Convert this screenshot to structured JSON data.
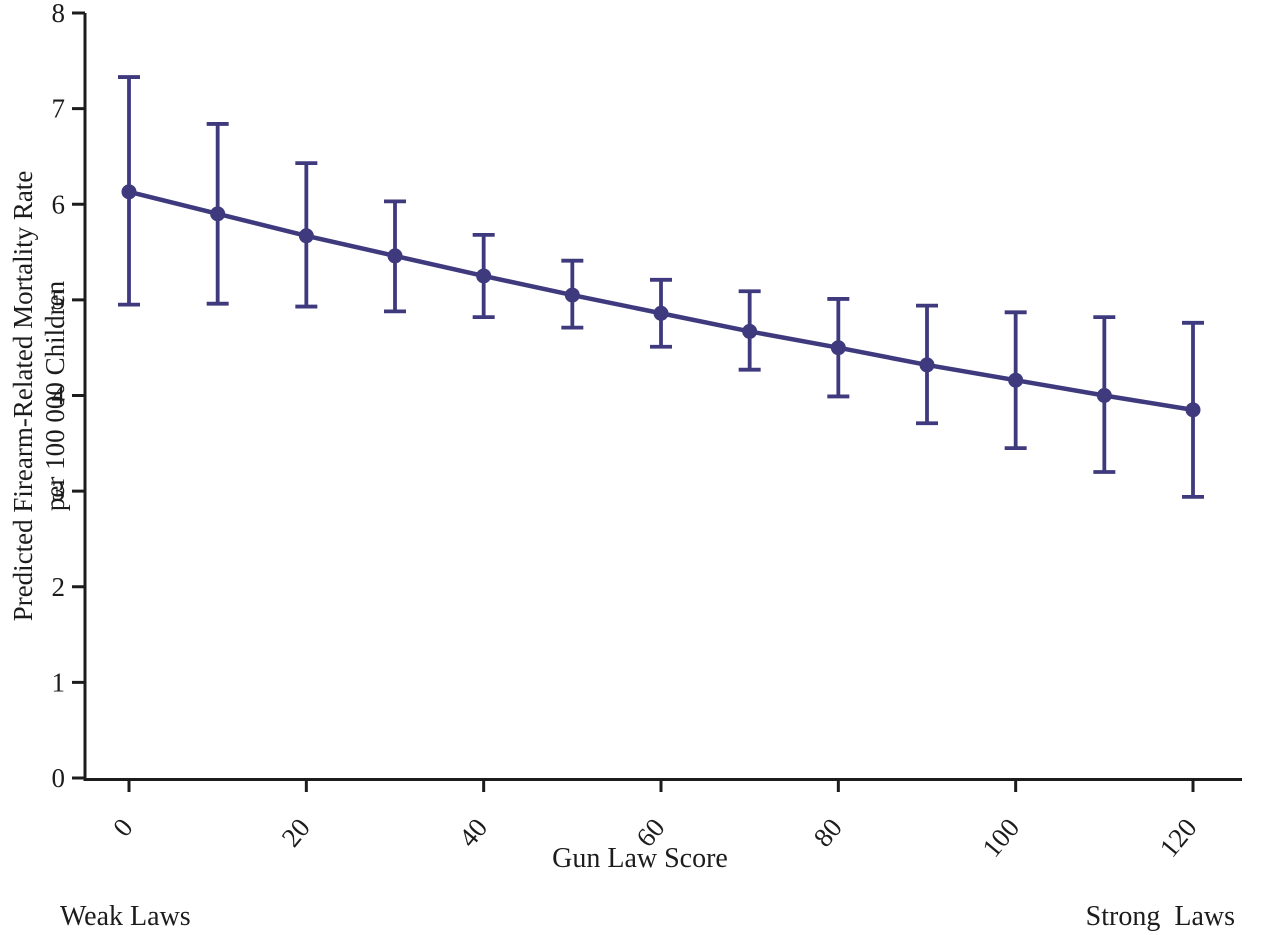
{
  "chart_data": {
    "type": "line",
    "title": "",
    "xlabel": "Gun Law Score",
    "ylabel_line1": "Predicted Firearm-Related Mortality Rate",
    "ylabel_line2": "per 100 000 Children",
    "x": [
      0,
      10,
      20,
      30,
      40,
      50,
      60,
      70,
      80,
      90,
      100,
      110,
      120
    ],
    "series": [
      {
        "name": "Predicted firearm-related mortality rate",
        "values": [
          6.13,
          5.9,
          5.67,
          5.46,
          5.25,
          5.05,
          4.86,
          4.67,
          4.5,
          4.32,
          4.16,
          4.0,
          3.85
        ]
      }
    ],
    "ci_lower": [
      4.95,
      4.96,
      4.93,
      4.88,
      4.82,
      4.71,
      4.51,
      4.27,
      3.99,
      3.71,
      3.45,
      3.2,
      2.94
    ],
    "ci_upper": [
      7.33,
      6.84,
      6.43,
      6.03,
      5.68,
      5.41,
      5.21,
      5.09,
      5.01,
      4.94,
      4.87,
      4.82,
      4.76
    ],
    "x_ticks": [
      0,
      20,
      40,
      60,
      80,
      100,
      120
    ],
    "y_ticks": [
      0,
      1,
      2,
      3,
      4,
      5,
      6,
      7,
      8
    ],
    "xlim": [
      0,
      120
    ],
    "ylim": [
      0,
      8
    ],
    "grid": false,
    "legend": "none",
    "annotations": {
      "bottom_left": "Weak Laws",
      "bottom_right": "Strong  Laws"
    },
    "colors": {
      "line": "#3f3a7e",
      "marker": "#3f3a7e",
      "error_bar": "#3f3a7e",
      "axis": "#1c1c1c",
      "text": "#1c1c1c",
      "background": "#ffffff"
    }
  }
}
